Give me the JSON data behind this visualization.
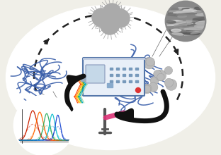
{
  "bg_color": "#f0efe8",
  "figure_width": 3.12,
  "figure_height": 2.2,
  "dpi": 100,
  "dotted_arrow_color": "#222222",
  "nanoparticle_color": "#aaaaaa",
  "nanofiber_color": "#3a5faa",
  "instrument_face": "#e8eff8",
  "instrument_border": "#5577aa",
  "spectrum_colors": [
    "#dd2200",
    "#ff6600",
    "#22aa44",
    "#00bbcc",
    "#0044dd"
  ],
  "electrode_color": "#dd3377",
  "electrode_stem": "#555555",
  "wire_colors": [
    "#ff4400",
    "#ff8800",
    "#ffcc00",
    "#22aa44",
    "#00aacc",
    "#aaddaa"
  ],
  "black_arrow": "#111111"
}
